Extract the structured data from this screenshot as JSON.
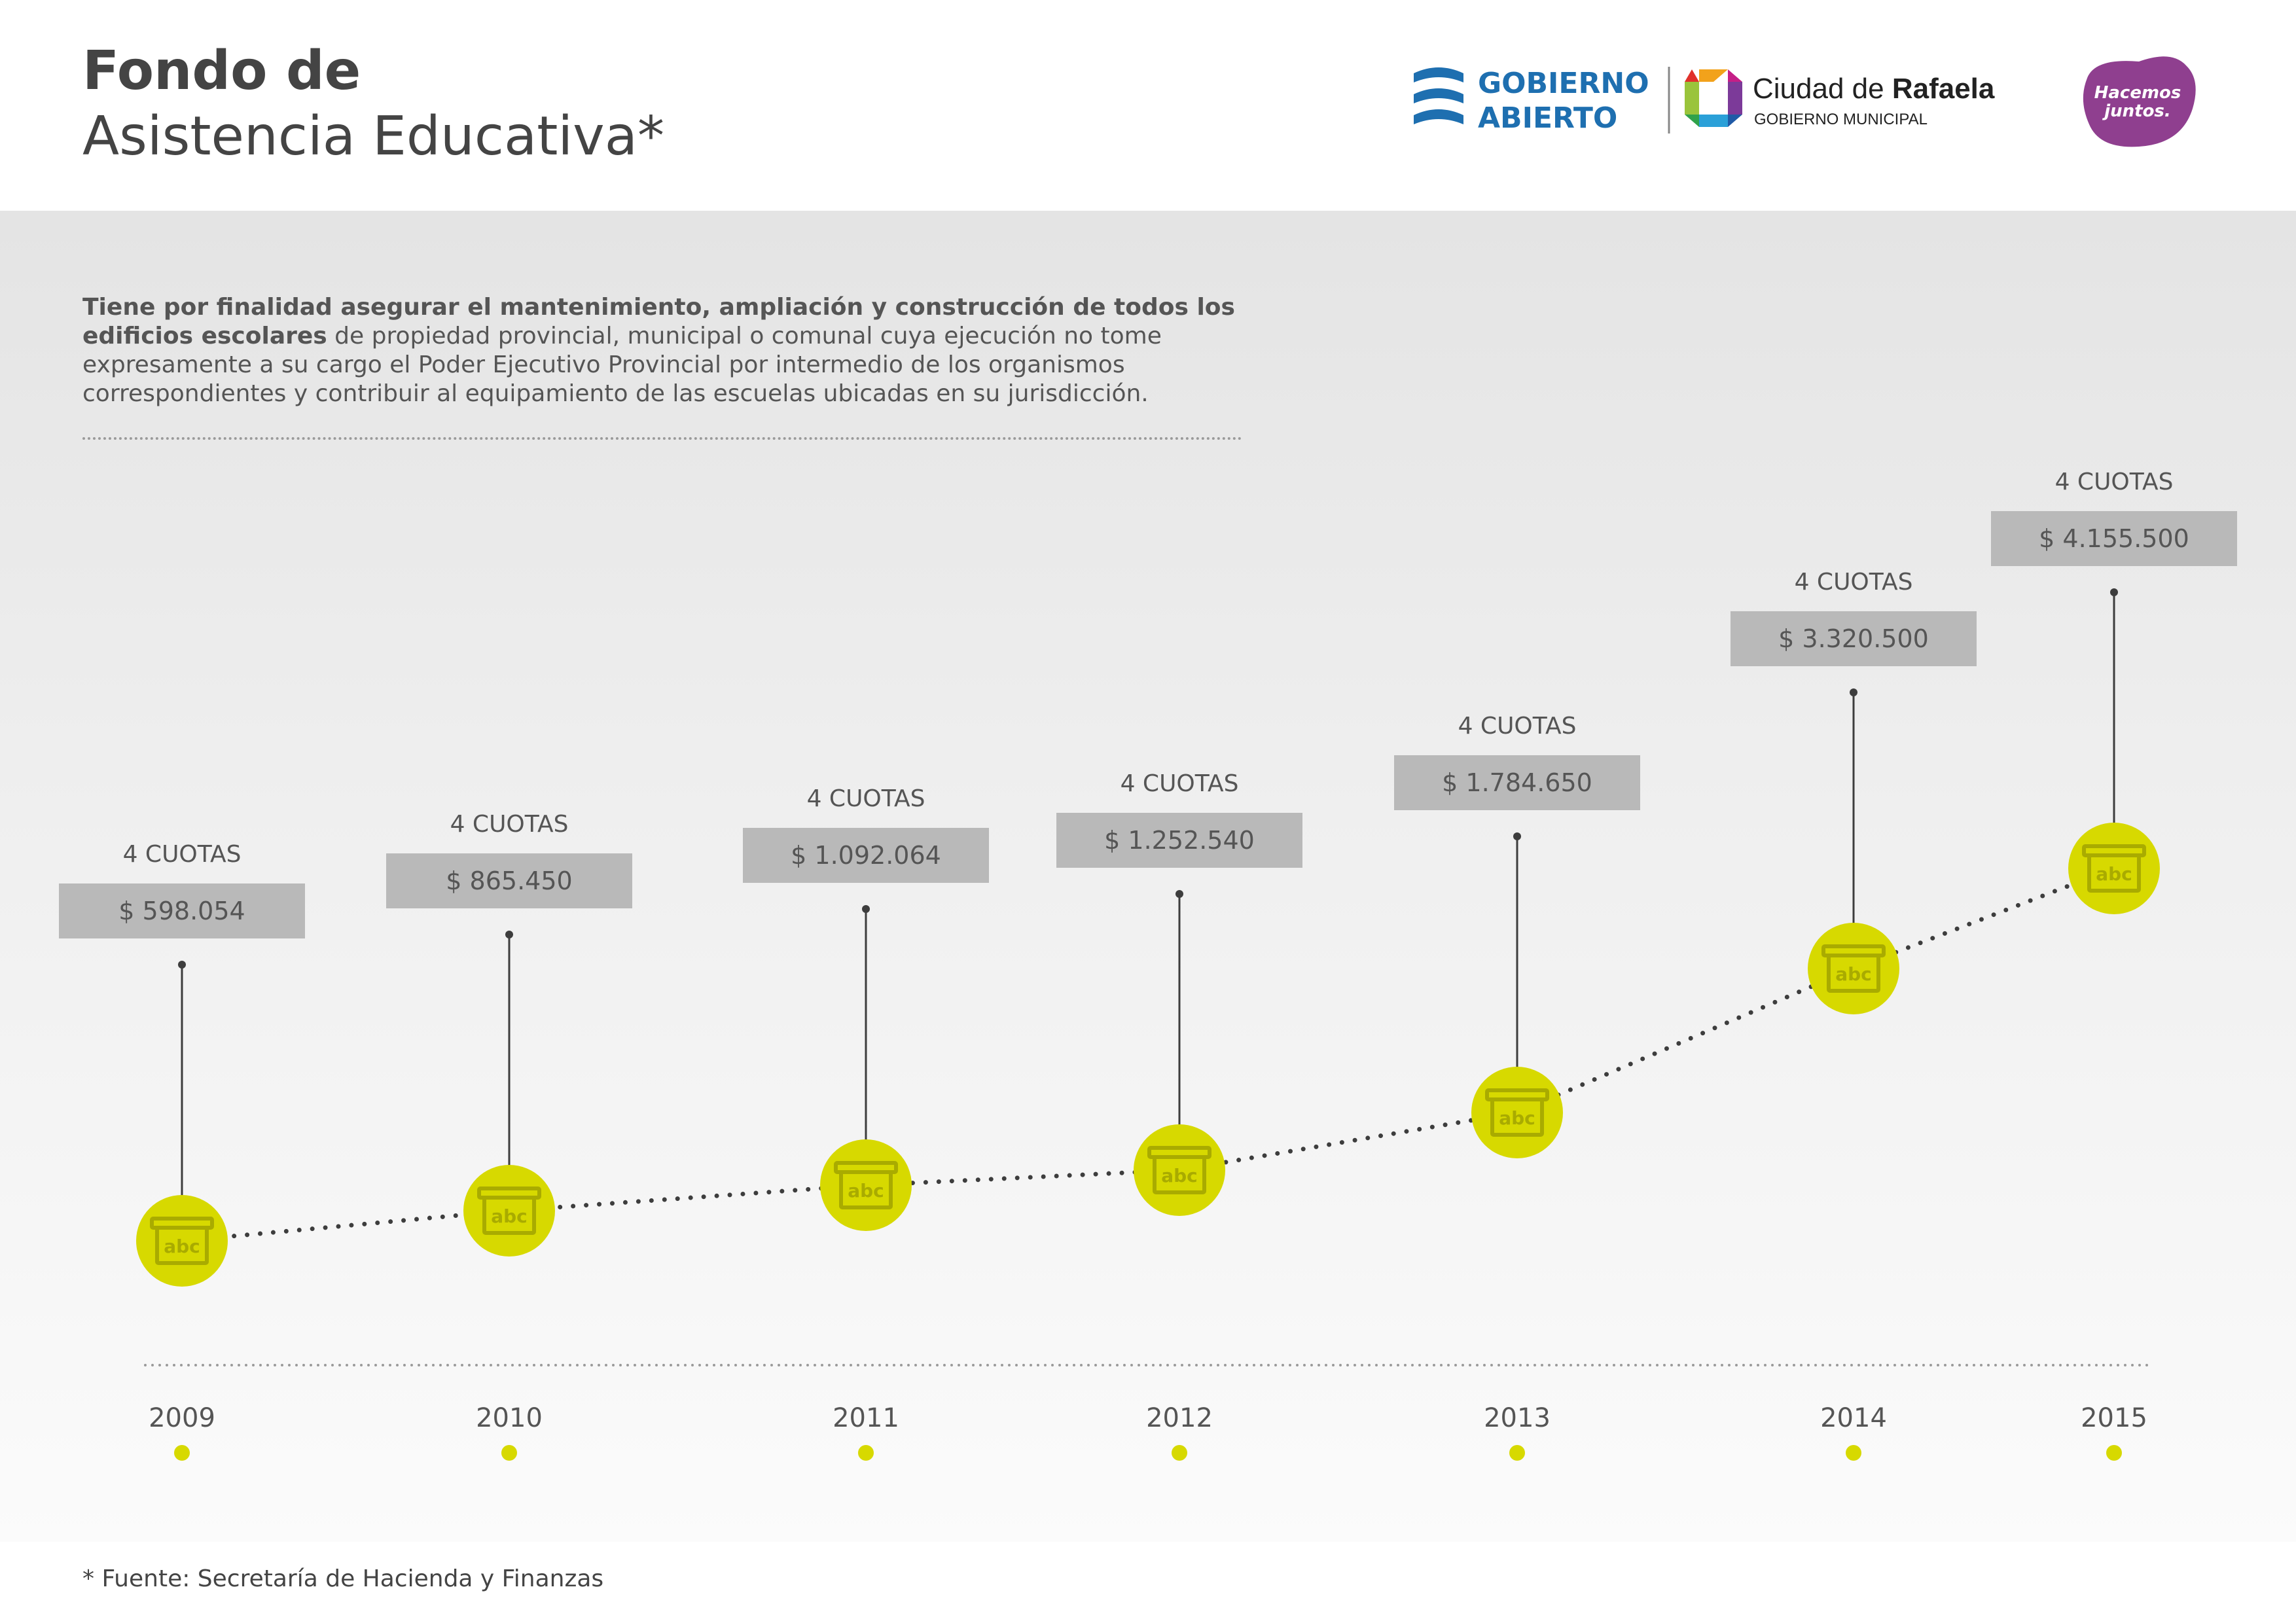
{
  "header": {
    "title_line1": "Fondo de",
    "title_line2": "Asistencia Educativa*",
    "logos": {
      "gobierno_abierto": [
        "GOBIERNO",
        "ABIERTO"
      ],
      "ciudad_prefix": "Ciudad de ",
      "ciudad_name": "Rafaela",
      "ciudad_sub": "GOBIERNO MUNICIPAL",
      "hacemos": [
        "Hacemos",
        "juntos."
      ]
    }
  },
  "description": {
    "bold": "Tiene por finalidad asegurar el mantenimiento, ampliación y construcción de todos los edificios escolares",
    "rest": " de propiedad provincial, municipal o comunal cuya ejecución no tome expresamente a su cargo el Poder Ejecutivo Provincial por intermedio de los organismos correspondientes y contribuir al equipamiento de las escuelas ubicadas en su jurisdicción."
  },
  "footnote": "* Fuente: Secretaría de Hacienda y Finanzas",
  "icon_label": "abc",
  "colors": {
    "accent": "#d7d900",
    "box": "#b9b9b9",
    "text": "#555555",
    "line": "#3d3d3d",
    "hacemos": "#8f3f8f",
    "gobierno": "#1e6fb0"
  },
  "chart_data": {
    "type": "line",
    "title": "",
    "x": [
      "2009",
      "2010",
      "2011",
      "2012",
      "2013",
      "2014",
      "2015"
    ],
    "values": [
      598054,
      865450,
      1092064,
      1252540,
      1784650,
      3320500,
      4155500
    ],
    "value_labels": [
      "$ 598.054",
      "$ 865.450",
      "$ 1.092.064",
      "$ 1.252.540",
      "$ 1.784.650",
      "$ 3.320.500",
      "$ 4.155.500"
    ],
    "installments_labels": [
      "4 CUOTAS",
      "4 CUOTAS",
      "4 CUOTAS",
      "4 CUOTAS",
      "4 CUOTAS",
      "4 CUOTAS",
      "4 CUOTAS"
    ],
    "line_style": "dotted",
    "marker": "school-box-icon",
    "grid": false,
    "legend": "none"
  }
}
